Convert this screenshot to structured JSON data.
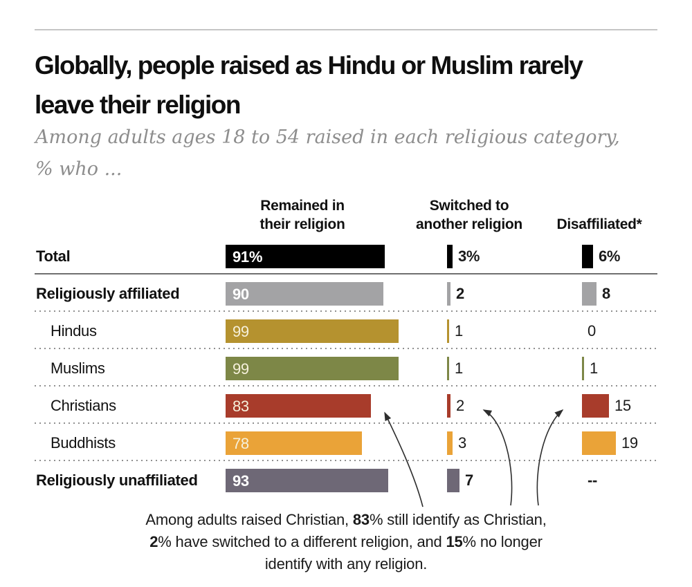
{
  "header": {
    "title": "Globally, people raised as Hindu or Muslim rarely leave their religion",
    "title_line1": "Globally, people raised as Hindu or Muslim rarely",
    "title_line2": "leave their religion",
    "subtitle": "Among adults ages 18 to 54 raised in each religious category, % who ...",
    "subtitle_line1": "Among adults ages 18 to 54 raised in each religious category,",
    "subtitle_line2": "% who ..."
  },
  "columns": [
    {
      "line1": "Remained in",
      "line2": "their religion"
    },
    {
      "line1": "Switched to",
      "line2": "another religion"
    },
    {
      "line1": "",
      "line2": "Disaffiliated*"
    }
  ],
  "chart_data": {
    "type": "bar",
    "unit": "%",
    "categories": [
      "Total",
      "Religiously affiliated",
      "Hindus",
      "Muslims",
      "Christians",
      "Buddhists",
      "Religiously unaffiliated"
    ],
    "series": [
      {
        "name": "Remained in their religion",
        "values": [
          91,
          90,
          99,
          99,
          83,
          78,
          93
        ]
      },
      {
        "name": "Switched to another religion",
        "values": [
          3,
          2,
          1,
          1,
          2,
          3,
          7
        ]
      },
      {
        "name": "Disaffiliated",
        "values": [
          6,
          8,
          0,
          1,
          15,
          19,
          null
        ]
      }
    ],
    "value_range": [
      0,
      100
    ],
    "grid": false,
    "legend_position": "column-headers-top"
  },
  "rows": [
    {
      "label": "Total",
      "bold": true,
      "indent": false,
      "bar_color": "#000000",
      "inner_color": "#ffffff",
      "inner_bold": true,
      "remained": 91,
      "remained_label": "91%",
      "switched": 3,
      "switched_label": "3%",
      "disaffiliated": 6,
      "disaffiliated_label": "6%",
      "separator": "none"
    },
    {
      "label": "Religiously affiliated",
      "bold": true,
      "indent": false,
      "bar_color": "#a3a3a5",
      "inner_color": "#ffffff",
      "inner_bold": true,
      "remained": 90,
      "remained_label": "90",
      "switched": 2,
      "switched_label": "2",
      "disaffiliated": 8,
      "disaffiliated_label": "8",
      "separator": "solid"
    },
    {
      "label": "Hindus",
      "bold": false,
      "indent": true,
      "bar_color": "#b5922f",
      "inner_color": "#f6f1dc",
      "inner_bold": false,
      "remained": 99,
      "remained_label": "99",
      "switched": 1,
      "switched_label": "1",
      "disaffiliated": 0,
      "disaffiliated_label": "0",
      "separator": "dotted"
    },
    {
      "label": "Muslims",
      "bold": false,
      "indent": true,
      "bar_color": "#7d8747",
      "inner_color": "#f6f1dc",
      "inner_bold": false,
      "remained": 99,
      "remained_label": "99",
      "switched": 1,
      "switched_label": "1",
      "disaffiliated": 1,
      "disaffiliated_label": "1",
      "separator": "dotted"
    },
    {
      "label": "Christians",
      "bold": false,
      "indent": true,
      "bar_color": "#a83c2b",
      "inner_color": "#f6f1dc",
      "inner_bold": false,
      "remained": 83,
      "remained_label": "83",
      "switched": 2,
      "switched_label": "2",
      "disaffiliated": 15,
      "disaffiliated_label": "15",
      "separator": "dotted"
    },
    {
      "label": "Buddhists",
      "bold": false,
      "indent": true,
      "bar_color": "#eaa338",
      "inner_color": "#f6f1dc",
      "inner_bold": false,
      "remained": 78,
      "remained_label": "78",
      "switched": 3,
      "switched_label": "3",
      "disaffiliated": 19,
      "disaffiliated_label": "19",
      "separator": "dotted"
    },
    {
      "label": "Religiously unaffiliated",
      "bold": true,
      "indent": false,
      "bar_color": "#6e6876",
      "inner_color": "#ffffff",
      "inner_bold": true,
      "remained": 93,
      "remained_label": "93",
      "switched": 7,
      "switched_label": "7",
      "disaffiliated": null,
      "disaffiliated_label": "--",
      "separator": "dotted"
    }
  ],
  "note_lines": [
    [
      {
        "t": "Among adults raised Christian, ",
        "b": false
      },
      {
        "t": "83",
        "b": true
      },
      {
        "t": "% still identify as Christian,",
        "b": false
      }
    ],
    [
      {
        "t": "2",
        "b": true
      },
      {
        "t": "% have switched to a different religion, and ",
        "b": false
      },
      {
        "t": "15",
        "b": true
      },
      {
        "t": "% no longer",
        "b": false
      }
    ],
    [
      {
        "t": "identify with any religion.",
        "b": false
      }
    ]
  ]
}
